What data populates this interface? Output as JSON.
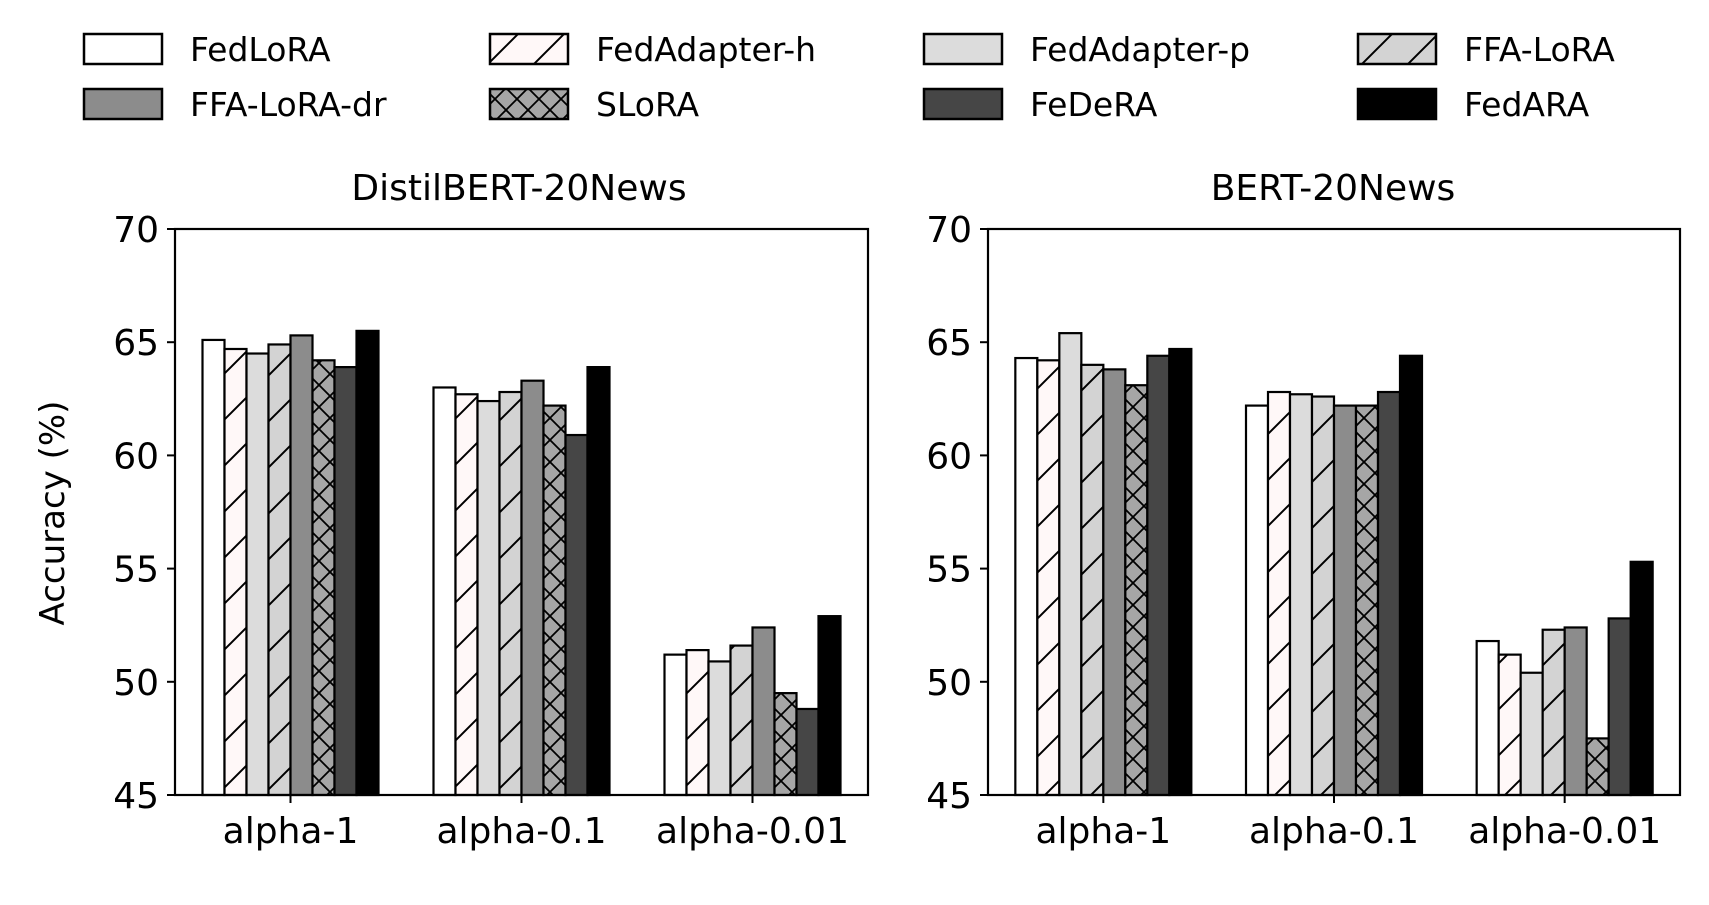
{
  "legend": [
    {
      "name": "FedLoRA",
      "fill": "#ffffff",
      "hatch": "none"
    },
    {
      "name": "FedAdapter-h",
      "fill": "#fff8f8",
      "hatch": "diag"
    },
    {
      "name": "FedAdapter-p",
      "fill": "#dcdcdc",
      "hatch": "none"
    },
    {
      "name": "FFA-LoRA",
      "fill": "#d3d3d3",
      "hatch": "diag"
    },
    {
      "name": "FFA-LoRA-dr",
      "fill": "#8c8c8c",
      "hatch": "none"
    },
    {
      "name": "SLoRA",
      "fill": "#a6a6a6",
      "hatch": "cross"
    },
    {
      "name": "FeDeRA",
      "fill": "#464646",
      "hatch": "none"
    },
    {
      "name": "FedARA",
      "fill": "#000000",
      "hatch": "none"
    }
  ],
  "chart_data": [
    {
      "type": "bar",
      "title": "DistilBERT-20News",
      "xlabel": "",
      "ylabel": "Accuracy (%)",
      "ylim": [
        45,
        70
      ],
      "yticks": [
        45,
        50,
        55,
        60,
        65,
        70
      ],
      "categories": [
        "alpha-1",
        "alpha-0.1",
        "alpha-0.01"
      ],
      "series": [
        {
          "name": "FedLoRA",
          "values": [
            65.1,
            63.0,
            51.2
          ]
        },
        {
          "name": "FedAdapter-h",
          "values": [
            64.7,
            62.7,
            51.4
          ]
        },
        {
          "name": "FedAdapter-p",
          "values": [
            64.5,
            62.4,
            50.9
          ]
        },
        {
          "name": "FFA-LoRA",
          "values": [
            64.9,
            62.8,
            51.6
          ]
        },
        {
          "name": "FFA-LoRA-dr",
          "values": [
            65.3,
            63.3,
            52.4
          ]
        },
        {
          "name": "SLoRA",
          "values": [
            64.2,
            62.2,
            49.5
          ]
        },
        {
          "name": "FeDeRA",
          "values": [
            63.9,
            60.9,
            48.8
          ]
        },
        {
          "name": "FedARA",
          "values": [
            65.5,
            63.9,
            52.9
          ]
        }
      ]
    },
    {
      "type": "bar",
      "title": "BERT-20News",
      "xlabel": "",
      "ylabel": "",
      "ylim": [
        45,
        70
      ],
      "yticks": [
        45,
        50,
        55,
        60,
        65,
        70
      ],
      "categories": [
        "alpha-1",
        "alpha-0.1",
        "alpha-0.01"
      ],
      "series": [
        {
          "name": "FedLoRA",
          "values": [
            64.3,
            62.2,
            51.8
          ]
        },
        {
          "name": "FedAdapter-h",
          "values": [
            64.2,
            62.8,
            51.2
          ]
        },
        {
          "name": "FedAdapter-p",
          "values": [
            65.4,
            62.7,
            50.4
          ]
        },
        {
          "name": "FFA-LoRA",
          "values": [
            64.0,
            62.6,
            52.3
          ]
        },
        {
          "name": "FFA-LoRA-dr",
          "values": [
            63.8,
            62.2,
            52.4
          ]
        },
        {
          "name": "SLoRA",
          "values": [
            63.1,
            62.2,
            47.5
          ]
        },
        {
          "name": "FeDeRA",
          "values": [
            64.4,
            62.8,
            52.8
          ]
        },
        {
          "name": "FedARA",
          "values": [
            64.7,
            64.4,
            55.3
          ]
        }
      ]
    }
  ]
}
